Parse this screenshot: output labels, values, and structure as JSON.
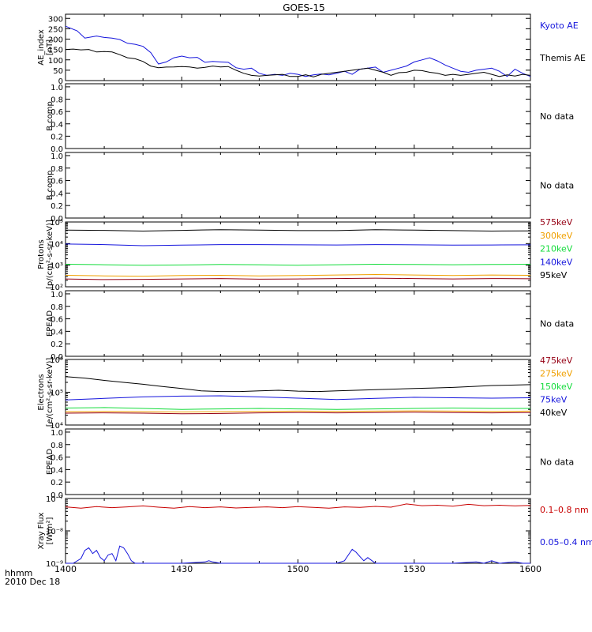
{
  "title": "GOES-15",
  "footer": {
    "time_label": "hhmm",
    "date_label": "2010 Dec 18"
  },
  "x_axis": {
    "range": [
      0,
      120
    ],
    "tick_values": [
      0,
      30,
      60,
      90,
      120
    ],
    "tick_labels": [
      "1400",
      "1430",
      "1500",
      "1530",
      "1600"
    ]
  },
  "colors": {
    "black": "#000000",
    "blue": "#1414dc",
    "green": "#14dc3c",
    "orange": "#f0a000",
    "red": "#c80000",
    "darkred": "#960014"
  },
  "chart_data": [
    {
      "type": "line",
      "ylabel": [
        "AE_index",
        "[nT]"
      ],
      "yscale": "linear",
      "ylim": [
        0,
        320
      ],
      "yticks": [
        0,
        50,
        100,
        150,
        200,
        250,
        300
      ],
      "yticklabels": [
        "0",
        "50",
        "100",
        "150",
        "200",
        "250",
        "300"
      ],
      "legend": "right",
      "series": [
        {
          "name": "Kyoto AE",
          "color": "blue",
          "x": [
            0,
            3,
            5,
            8,
            10,
            12,
            14,
            16,
            18,
            20,
            22,
            24,
            26,
            28,
            30,
            32,
            34,
            36,
            38,
            40,
            42,
            44,
            46,
            48,
            50,
            52,
            54,
            56,
            58,
            60,
            62,
            64,
            66,
            68,
            70,
            72,
            74,
            76,
            78,
            80,
            82,
            84,
            86,
            88,
            90,
            92,
            94,
            96,
            98,
            100,
            102,
            104,
            106,
            108,
            110,
            112,
            114,
            116,
            118,
            120
          ],
          "values": [
            262,
            240,
            205,
            215,
            208,
            205,
            198,
            180,
            175,
            165,
            135,
            80,
            90,
            110,
            118,
            110,
            112,
            88,
            92,
            90,
            88,
            62,
            55,
            60,
            35,
            25,
            30,
            25,
            35,
            30,
            20,
            28,
            32,
            28,
            35,
            45,
            30,
            55,
            60,
            65,
            40,
            50,
            60,
            70,
            90,
            100,
            110,
            95,
            75,
            60,
            45,
            40,
            50,
            55,
            60,
            45,
            20,
            55,
            35,
            20
          ]
        },
        {
          "name": "Themis AE",
          "color": "black",
          "x": [
            0,
            2,
            4,
            6,
            8,
            10,
            12,
            14,
            16,
            18,
            20,
            22,
            24,
            26,
            28,
            30,
            32,
            34,
            36,
            38,
            40,
            42,
            44,
            46,
            48,
            50,
            52,
            54,
            56,
            58,
            60,
            62,
            64,
            66,
            68,
            70,
            72,
            74,
            76,
            78,
            80,
            82,
            84,
            86,
            88,
            90,
            92,
            94,
            96,
            98,
            100,
            102,
            104,
            106,
            108,
            110,
            112,
            114,
            116,
            118,
            120
          ],
          "values": [
            150,
            152,
            148,
            150,
            138,
            140,
            138,
            125,
            110,
            105,
            92,
            70,
            62,
            65,
            66,
            68,
            66,
            60,
            64,
            70,
            66,
            68,
            50,
            35,
            25,
            22,
            25,
            28,
            30,
            20,
            20,
            28,
            18,
            30,
            35,
            40,
            45,
            50,
            55,
            60,
            50,
            40,
            25,
            38,
            40,
            50,
            48,
            40,
            35,
            25,
            30,
            25,
            30,
            35,
            40,
            30,
            20,
            28,
            22,
            30,
            25
          ]
        }
      ]
    },
    {
      "type": "line",
      "ylabel": [
        "B comp"
      ],
      "yscale": "linear",
      "ylim": [
        0,
        1.05
      ],
      "yticks": [
        0,
        0.2,
        0.4,
        0.6,
        0.8,
        1.0
      ],
      "yticklabels": [
        "0.0",
        "0.2",
        "0.4",
        "0.6",
        "0.8",
        "1.0"
      ],
      "note": "No data",
      "series": []
    },
    {
      "type": "line",
      "ylabel": [
        "B comp"
      ],
      "yscale": "linear",
      "ylim": [
        0,
        1.05
      ],
      "yticks": [
        0,
        0.2,
        0.4,
        0.6,
        0.8,
        1.0
      ],
      "yticklabels": [
        "0.0",
        "0.2",
        "0.4",
        "0.6",
        "0.8",
        "1.0"
      ],
      "note": "No data",
      "series": []
    },
    {
      "type": "line",
      "ylabel": [
        "Protons",
        "[p/(cm²-s-sr-keV)]"
      ],
      "yscale": "log",
      "ylim": [
        100,
        100000
      ],
      "yticks": [
        100,
        1000,
        10000,
        100000
      ],
      "yticklabels": [
        "10²",
        "10³",
        "10⁴",
        "10⁵"
      ],
      "legend": "right",
      "series": [
        {
          "name": "575keV",
          "color": "darkred",
          "x": [
            0,
            10,
            20,
            30,
            40,
            50,
            60,
            70,
            80,
            90,
            100,
            110,
            120
          ],
          "values": [
            230,
            215,
            220,
            230,
            240,
            225,
            230,
            240,
            250,
            240,
            230,
            240,
            235
          ]
        },
        {
          "name": "300keV",
          "color": "orange",
          "x": [
            0,
            10,
            20,
            30,
            40,
            50,
            60,
            70,
            80,
            90,
            100,
            110,
            120
          ],
          "values": [
            340,
            320,
            310,
            330,
            340,
            320,
            330,
            350,
            370,
            350,
            330,
            350,
            340
          ]
        },
        {
          "name": "210keV",
          "color": "green",
          "x": [
            0,
            10,
            20,
            30,
            40,
            50,
            60,
            70,
            80,
            90,
            100,
            110,
            120
          ],
          "values": [
            1100,
            1050,
            1000,
            1020,
            1080,
            1050,
            1000,
            1050,
            1100,
            1080,
            1050,
            1080,
            1100
          ]
        },
        {
          "name": "140keV",
          "color": "blue",
          "x": [
            0,
            10,
            20,
            30,
            40,
            50,
            60,
            70,
            80,
            90,
            100,
            110,
            120
          ],
          "values": [
            9500,
            9000,
            8000,
            8500,
            9000,
            9000,
            8800,
            8600,
            9000,
            8800,
            8500,
            8600,
            8800
          ]
        },
        {
          "name": "95keV",
          "color": "black",
          "x": [
            0,
            10,
            20,
            30,
            40,
            50,
            60,
            70,
            80,
            90,
            100,
            110,
            120
          ],
          "values": [
            42000,
            41000,
            38000,
            41000,
            44000,
            42000,
            40000,
            40000,
            44000,
            42000,
            40000,
            38000,
            39000
          ]
        }
      ]
    },
    {
      "type": "line",
      "ylabel": [
        "EPEAD"
      ],
      "yscale": "linear",
      "ylim": [
        0,
        1.05
      ],
      "yticks": [
        0,
        0.2,
        0.4,
        0.6,
        0.8,
        1.0
      ],
      "yticklabels": [
        "0.0",
        "0.2",
        "0.4",
        "0.6",
        "0.8",
        "1.0"
      ],
      "note": "No data",
      "series": []
    },
    {
      "type": "line",
      "ylabel": [
        "Electrons",
        "[e/(cm²-s-sr-keV)]"
      ],
      "yscale": "log",
      "ylim": [
        10000,
        1000000
      ],
      "yticks": [
        10000,
        100000,
        1000000
      ],
      "yticklabels": [
        "10⁴",
        "10⁵",
        "10⁶"
      ],
      "legend": "right",
      "series": [
        {
          "name": "475keV",
          "color": "darkred",
          "x": [
            0,
            10,
            20,
            30,
            40,
            50,
            60,
            70,
            80,
            90,
            100,
            110,
            120
          ],
          "values": [
            23000,
            23500,
            23000,
            22000,
            22500,
            23500,
            24000,
            23500,
            24000,
            24500,
            24000,
            23500,
            24000
          ]
        },
        {
          "name": "275keV",
          "color": "orange",
          "x": [
            0,
            10,
            20,
            30,
            40,
            50,
            60,
            70,
            80,
            90,
            100,
            110,
            120
          ],
          "values": [
            25500,
            26000,
            25500,
            25000,
            25500,
            26000,
            26500,
            26000,
            26500,
            27000,
            26500,
            26000,
            26500
          ]
        },
        {
          "name": "150keV",
          "color": "green",
          "x": [
            0,
            10,
            20,
            30,
            40,
            50,
            60,
            70,
            80,
            90,
            100,
            110,
            120
          ],
          "values": [
            33000,
            34000,
            32000,
            30000,
            31000,
            32000,
            31000,
            30000,
            31000,
            32000,
            33000,
            32000,
            32000
          ]
        },
        {
          "name": "75keV",
          "color": "blue",
          "x": [
            0,
            10,
            20,
            30,
            40,
            50,
            60,
            70,
            80,
            90,
            100,
            110,
            120
          ],
          "values": [
            58000,
            65000,
            72000,
            76000,
            78000,
            72000,
            66000,
            60000,
            65000,
            70000,
            68000,
            66000,
            68000
          ]
        },
        {
          "name": "40keV",
          "color": "black",
          "x": [
            0,
            5,
            10,
            15,
            20,
            25,
            30,
            35,
            40,
            45,
            50,
            55,
            60,
            65,
            70,
            75,
            80,
            85,
            90,
            95,
            100,
            105,
            110,
            115,
            120
          ],
          "values": [
            300000,
            270000,
            230000,
            200000,
            175000,
            150000,
            130000,
            110000,
            105000,
            105000,
            110000,
            115000,
            108000,
            105000,
            110000,
            115000,
            120000,
            125000,
            130000,
            135000,
            140000,
            150000,
            160000,
            165000,
            170000
          ]
        }
      ]
    },
    {
      "type": "line",
      "ylabel": [
        "EPEAD"
      ],
      "yscale": "linear",
      "ylim": [
        0,
        1.05
      ],
      "yticks": [
        0,
        0.2,
        0.4,
        0.6,
        0.8,
        1.0
      ],
      "yticklabels": [
        "0.0",
        "0.2",
        "0.4",
        "0.6",
        "0.8",
        "1.0"
      ],
      "note": "No data",
      "series": []
    },
    {
      "type": "line",
      "ylabel": [
        "Xray Flux",
        "[W/m²]"
      ],
      "yscale": "log",
      "ylim": [
        1e-09,
        1e-07
      ],
      "yticks": [
        1e-09,
        1e-08,
        1e-07
      ],
      "yticklabels": [
        "10⁻⁹",
        "10⁻⁸",
        "10⁻⁷"
      ],
      "legend": "right",
      "series": [
        {
          "name": "0.1–0.8 nm",
          "color": "red",
          "x": [
            0,
            4,
            8,
            12,
            16,
            20,
            24,
            28,
            32,
            36,
            40,
            44,
            48,
            52,
            56,
            60,
            64,
            68,
            72,
            76,
            80,
            84,
            88,
            92,
            96,
            100,
            104,
            108,
            112,
            116,
            120
          ],
          "values": [
            5.5e-08,
            5e-08,
            5.6e-08,
            5.2e-08,
            5.5e-08,
            5.9e-08,
            5.4e-08,
            5e-08,
            5.6e-08,
            5.2e-08,
            5.5e-08,
            5.1e-08,
            5.3e-08,
            5.5e-08,
            5.2e-08,
            5.6e-08,
            5.3e-08,
            5e-08,
            5.5e-08,
            5.3e-08,
            5.7e-08,
            5.4e-08,
            6.8e-08,
            6e-08,
            6.2e-08,
            5.8e-08,
            6.6e-08,
            6e-08,
            6.2e-08,
            5.9e-08,
            6.1e-08
          ]
        },
        {
          "name": "0.05–0.4 nm",
          "color": "blue",
          "x": [
            0,
            2,
            4,
            5,
            6,
            7,
            8,
            9,
            10,
            11,
            12,
            13,
            14,
            15,
            16,
            17,
            18,
            20,
            22,
            24,
            30,
            36,
            37,
            38,
            40,
            50,
            60,
            66,
            70,
            72,
            73,
            74,
            75,
            76,
            77,
            78,
            80,
            84,
            90,
            100,
            106,
            108,
            110,
            112,
            116,
            118,
            120
          ],
          "values": [
            1e-09,
            1e-09,
            1.4e-09,
            2.5e-09,
            3e-09,
            2e-09,
            2.5e-09,
            1.5e-09,
            1.2e-09,
            1.8e-09,
            2e-09,
            1.2e-09,
            3.4e-09,
            3e-09,
            2e-09,
            1.2e-09,
            1e-09,
            1e-09,
            1e-09,
            1e-09,
            1e-09,
            1.1e-09,
            1.2e-09,
            1.1e-09,
            1e-09,
            1e-09,
            1e-09,
            1e-09,
            1e-09,
            1.2e-09,
            1.8e-09,
            2.7e-09,
            2.2e-09,
            1.6e-09,
            1.2e-09,
            1.5e-09,
            1e-09,
            1e-09,
            1e-09,
            1e-09,
            1.1e-09,
            1e-09,
            1.2e-09,
            1e-09,
            1.1e-09,
            1e-09,
            1e-09
          ]
        }
      ]
    }
  ]
}
